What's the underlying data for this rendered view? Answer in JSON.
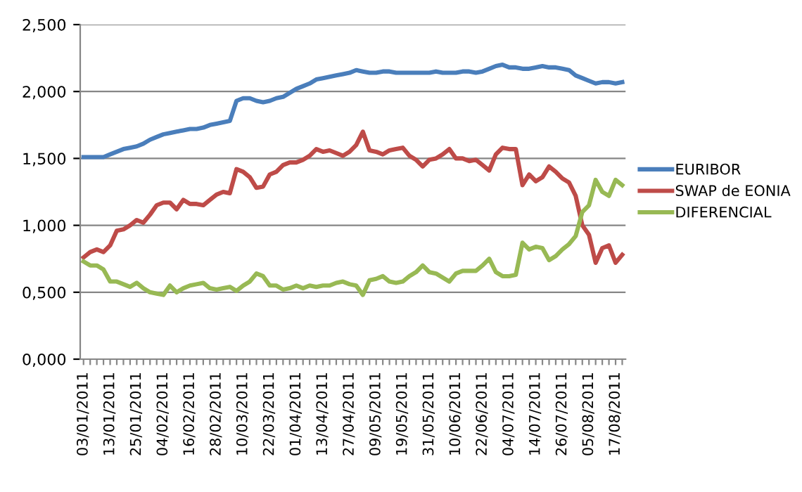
{
  "chart_data": {
    "type": "line",
    "categories": [
      "03/01/2011",
      null,
      null,
      null,
      "13/01/2011",
      null,
      null,
      null,
      "25/01/2011",
      null,
      null,
      null,
      "04/02/2011",
      null,
      null,
      null,
      "16/02/2011",
      null,
      null,
      null,
      "28/02/2011",
      null,
      null,
      null,
      "10/03/2011",
      null,
      null,
      null,
      "22/03/2011",
      null,
      null,
      null,
      "01/04/2011",
      null,
      null,
      null,
      "13/04/2011",
      null,
      null,
      null,
      "27/04/2011",
      null,
      null,
      null,
      "09/05/2011",
      null,
      null,
      null,
      "19/05/2011",
      null,
      null,
      null,
      "31/05/2011",
      null,
      null,
      null,
      "10/06/2011",
      null,
      null,
      null,
      "22/06/2011",
      null,
      null,
      null,
      "04/07/2011",
      null,
      null,
      null,
      "14/07/2011",
      null,
      null,
      null,
      "26/07/2011",
      null,
      null,
      null,
      "05/08/2011",
      null,
      null,
      null,
      "17/08/2011",
      null
    ],
    "series": [
      {
        "name": "EURIBOR",
        "color": "#4a7ebb",
        "values": [
          1.51,
          1.51,
          1.51,
          1.51,
          1.53,
          1.55,
          1.57,
          1.58,
          1.59,
          1.61,
          1.64,
          1.66,
          1.68,
          1.69,
          1.7,
          1.71,
          1.72,
          1.72,
          1.73,
          1.75,
          1.76,
          1.77,
          1.78,
          1.93,
          1.95,
          1.95,
          1.93,
          1.92,
          1.93,
          1.95,
          1.96,
          1.99,
          2.02,
          2.04,
          2.06,
          2.09,
          2.1,
          2.11,
          2.12,
          2.13,
          2.14,
          2.16,
          2.15,
          2.14,
          2.14,
          2.15,
          2.15,
          2.14,
          2.14,
          2.14,
          2.14,
          2.14,
          2.14,
          2.15,
          2.14,
          2.14,
          2.14,
          2.15,
          2.15,
          2.14,
          2.15,
          2.17,
          2.19,
          2.2,
          2.18,
          2.18,
          2.17,
          2.17,
          2.18,
          2.19,
          2.18,
          2.18,
          2.17,
          2.16,
          2.12,
          2.1,
          2.08,
          2.06,
          2.07,
          2.07,
          2.06,
          2.07
        ]
      },
      {
        "name": "SWAP de EONIA",
        "color": "#be4b48",
        "values": [
          0.76,
          0.8,
          0.82,
          0.8,
          0.85,
          0.96,
          0.97,
          1.0,
          1.04,
          1.02,
          1.08,
          1.15,
          1.17,
          1.17,
          1.12,
          1.19,
          1.16,
          1.16,
          1.15,
          1.19,
          1.23,
          1.25,
          1.24,
          1.42,
          1.4,
          1.36,
          1.28,
          1.29,
          1.38,
          1.4,
          1.45,
          1.47,
          1.47,
          1.49,
          1.52,
          1.57,
          1.55,
          1.56,
          1.54,
          1.52,
          1.55,
          1.6,
          1.7,
          1.56,
          1.55,
          1.53,
          1.56,
          1.57,
          1.58,
          1.52,
          1.49,
          1.44,
          1.49,
          1.5,
          1.53,
          1.57,
          1.5,
          1.5,
          1.48,
          1.49,
          1.45,
          1.41,
          1.53,
          1.58,
          1.57,
          1.57,
          1.3,
          1.38,
          1.33,
          1.36,
          1.44,
          1.4,
          1.35,
          1.32,
          1.22,
          1.0,
          0.93,
          0.72,
          0.83,
          0.85,
          0.72,
          0.78
        ]
      },
      {
        "name": "DIFERENCIAL",
        "color": "#98b954",
        "values": [
          0.73,
          0.7,
          0.7,
          0.67,
          0.58,
          0.58,
          0.56,
          0.54,
          0.57,
          0.53,
          0.5,
          0.49,
          0.48,
          0.55,
          0.5,
          0.53,
          0.55,
          0.56,
          0.57,
          0.53,
          0.52,
          0.53,
          0.54,
          0.51,
          0.55,
          0.58,
          0.64,
          0.62,
          0.55,
          0.55,
          0.52,
          0.53,
          0.55,
          0.53,
          0.55,
          0.54,
          0.55,
          0.55,
          0.57,
          0.58,
          0.56,
          0.55,
          0.48,
          0.59,
          0.6,
          0.62,
          0.58,
          0.57,
          0.58,
          0.62,
          0.65,
          0.7,
          0.65,
          0.64,
          0.61,
          0.58,
          0.64,
          0.66,
          0.66,
          0.66,
          0.7,
          0.75,
          0.65,
          0.62,
          0.62,
          0.63,
          0.87,
          0.82,
          0.84,
          0.83,
          0.74,
          0.77,
          0.82,
          0.86,
          0.92,
          1.1,
          1.15,
          1.34,
          1.25,
          1.22,
          1.34,
          1.3
        ]
      }
    ],
    "ylim": [
      0,
      2.5
    ],
    "yticks": [
      {
        "value": 0,
        "label": "0,000"
      },
      {
        "value": 0.5,
        "label": "0,500"
      },
      {
        "value": 1,
        "label": "1,000"
      },
      {
        "value": 1.5,
        "label": "1,500"
      },
      {
        "value": 2,
        "label": "2,000"
      },
      {
        "value": 2.5,
        "label": "2,500"
      }
    ],
    "grid": "y",
    "legend": "right",
    "marker": "none",
    "line_style": "solid"
  }
}
